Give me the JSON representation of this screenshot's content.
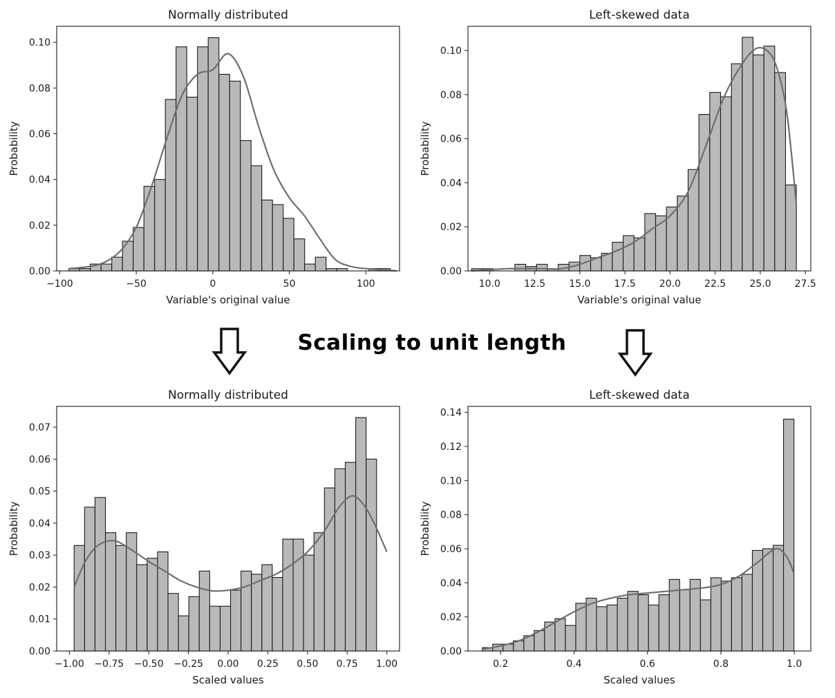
{
  "heading": "Scaling to unit length",
  "chart_data": [
    {
      "type": "bar",
      "title": "Normally distributed",
      "xlabel": "Variable's original value",
      "ylabel": "Probability",
      "xlim": [
        -102,
        122
      ],
      "ylim": [
        0,
        0.107
      ],
      "xticks": [
        -100,
        -50,
        0,
        50,
        100
      ],
      "xtick_labels": [
        "−100",
        "−50",
        "0",
        "50",
        "100"
      ],
      "yticks": [
        0,
        0.02,
        0.04,
        0.06,
        0.08,
        0.1
      ],
      "ytick_labels": [
        "0.00",
        "0.02",
        "0.04",
        "0.06",
        "0.08",
        "0.10"
      ],
      "bin_start": -94,
      "bin_width": 7,
      "values": [
        0.001,
        0.001,
        0.003,
        0.003,
        0.006,
        0.013,
        0.019,
        0.037,
        0.04,
        0.075,
        0.098,
        0.076,
        0.098,
        0.102,
        0.086,
        0.083,
        0.057,
        0.046,
        0.031,
        0.029,
        0.023,
        0.014,
        0.003,
        0.006,
        0.001,
        0.001,
        0.0,
        0.0,
        0.001,
        0.001
      ],
      "kde": [
        [
          -94,
          0.001
        ],
        [
          -80,
          0.002
        ],
        [
          -70,
          0.004
        ],
        [
          -60,
          0.009
        ],
        [
          -50,
          0.019
        ],
        [
          -40,
          0.037
        ],
        [
          -30,
          0.058
        ],
        [
          -20,
          0.077
        ],
        [
          -10,
          0.086
        ],
        [
          0,
          0.088
        ],
        [
          10,
          0.095
        ],
        [
          20,
          0.085
        ],
        [
          30,
          0.063
        ],
        [
          40,
          0.044
        ],
        [
          50,
          0.032
        ],
        [
          60,
          0.024
        ],
        [
          70,
          0.014
        ],
        [
          80,
          0.005
        ],
        [
          90,
          0.002
        ],
        [
          100,
          0.001
        ],
        [
          120,
          0.0
        ]
      ]
    },
    {
      "type": "bar",
      "title": "Left-skewed data",
      "xlabel": "Variable's original value",
      "ylabel": "Probability",
      "xlim": [
        8.8,
        27.8
      ],
      "ylim": [
        0,
        0.111
      ],
      "xticks": [
        10.0,
        12.5,
        15.0,
        17.5,
        20.0,
        22.5,
        25.0,
        27.5
      ],
      "xtick_labels": [
        "10.0",
        "12.5",
        "15.0",
        "17.5",
        "20.0",
        "22.5",
        "25.0",
        "27.5"
      ],
      "yticks": [
        0,
        0.02,
        0.04,
        0.06,
        0.08,
        0.1
      ],
      "ytick_labels": [
        "0.00",
        "0.02",
        "0.04",
        "0.06",
        "0.08",
        "0.10"
      ],
      "bin_start": 9.0,
      "bin_width": 0.6,
      "values": [
        0.001,
        0.001,
        0.0,
        0.0,
        0.003,
        0.002,
        0.003,
        0.001,
        0.003,
        0.004,
        0.007,
        0.006,
        0.008,
        0.013,
        0.016,
        0.015,
        0.026,
        0.025,
        0.029,
        0.034,
        0.046,
        0.071,
        0.081,
        0.079,
        0.094,
        0.106,
        0.098,
        0.102,
        0.09,
        0.039
      ],
      "kde": [
        [
          9.0,
          0.0
        ],
        [
          11.0,
          0.001
        ],
        [
          13.0,
          0.001
        ],
        [
          14.0,
          0.001
        ],
        [
          15.0,
          0.003
        ],
        [
          16.0,
          0.006
        ],
        [
          17.0,
          0.009
        ],
        [
          18.0,
          0.013
        ],
        [
          19.0,
          0.019
        ],
        [
          20.0,
          0.025
        ],
        [
          21.0,
          0.036
        ],
        [
          22.0,
          0.057
        ],
        [
          23.0,
          0.079
        ],
        [
          24.0,
          0.094
        ],
        [
          24.8,
          0.101
        ],
        [
          25.5,
          0.099
        ],
        [
          26.0,
          0.09
        ],
        [
          26.5,
          0.07
        ],
        [
          27.0,
          0.03
        ]
      ]
    },
    {
      "type": "bar",
      "title": "Normally distributed",
      "xlabel": "Scaled values",
      "ylabel": "Probability",
      "xlim": [
        -1.08,
        1.08
      ],
      "ylim": [
        0,
        0.0765
      ],
      "xticks": [
        -1.0,
        -0.75,
        -0.5,
        -0.25,
        0.0,
        0.25,
        0.5,
        0.75,
        1.0
      ],
      "xtick_labels": [
        "−1.00",
        "−0.75",
        "−0.50",
        "−0.25",
        "0.00",
        "0.25",
        "0.50",
        "0.75",
        "1.00"
      ],
      "yticks": [
        0,
        0.01,
        0.02,
        0.03,
        0.04,
        0.05,
        0.06,
        0.07
      ],
      "ytick_labels": [
        "0.00",
        "0.01",
        "0.02",
        "0.03",
        "0.04",
        "0.05",
        "0.06",
        "0.07"
      ],
      "bin_start": -0.97,
      "bin_width": 0.0657,
      "values": [
        0.033,
        0.045,
        0.048,
        0.037,
        0.033,
        0.037,
        0.027,
        0.029,
        0.031,
        0.018,
        0.011,
        0.017,
        0.025,
        0.014,
        0.014,
        0.019,
        0.025,
        0.024,
        0.027,
        0.023,
        0.035,
        0.035,
        0.03,
        0.037,
        0.051,
        0.057,
        0.059,
        0.073,
        0.06
      ],
      "kde": [
        [
          -0.97,
          0.02
        ],
        [
          -0.9,
          0.028
        ],
        [
          -0.82,
          0.033
        ],
        [
          -0.72,
          0.0345
        ],
        [
          -0.62,
          0.032
        ],
        [
          -0.5,
          0.028
        ],
        [
          -0.4,
          0.025
        ],
        [
          -0.3,
          0.022
        ],
        [
          -0.2,
          0.02
        ],
        [
          -0.1,
          0.0188
        ],
        [
          0.0,
          0.019
        ],
        [
          0.1,
          0.02
        ],
        [
          0.2,
          0.022
        ],
        [
          0.3,
          0.024
        ],
        [
          0.4,
          0.027
        ],
        [
          0.5,
          0.031
        ],
        [
          0.6,
          0.037
        ],
        [
          0.7,
          0.045
        ],
        [
          0.78,
          0.0485
        ],
        [
          0.85,
          0.046
        ],
        [
          0.92,
          0.04
        ],
        [
          1.0,
          0.031
        ]
      ]
    },
    {
      "type": "bar",
      "title": "Left-skewed data",
      "xlabel": "Scaled values",
      "ylabel": "Probability",
      "xlim": [
        0.111,
        1.045
      ],
      "ylim": [
        0,
        0.1435
      ],
      "xticks": [
        0.2,
        0.4,
        0.6,
        0.8,
        1.0
      ],
      "xtick_labels": [
        "0.2",
        "0.4",
        "0.6",
        "0.8",
        "1.0"
      ],
      "yticks": [
        0,
        0.02,
        0.04,
        0.06,
        0.08,
        0.1,
        0.12,
        0.14
      ],
      "ytick_labels": [
        "0.00",
        "0.02",
        "0.04",
        "0.06",
        "0.08",
        "0.10",
        "0.12",
        "0.14"
      ],
      "bin_start": 0.15,
      "bin_width": 0.0283,
      "values": [
        0.002,
        0.004,
        0.004,
        0.006,
        0.009,
        0.012,
        0.017,
        0.019,
        0.015,
        0.028,
        0.031,
        0.026,
        0.027,
        0.031,
        0.035,
        0.033,
        0.027,
        0.033,
        0.042,
        0.036,
        0.042,
        0.03,
        0.043,
        0.041,
        0.043,
        0.045,
        0.059,
        0.06,
        0.062,
        0.136
      ],
      "kde": [
        [
          0.15,
          0.001
        ],
        [
          0.2,
          0.003
        ],
        [
          0.25,
          0.006
        ],
        [
          0.3,
          0.011
        ],
        [
          0.35,
          0.017
        ],
        [
          0.4,
          0.023
        ],
        [
          0.45,
          0.028
        ],
        [
          0.5,
          0.031
        ],
        [
          0.55,
          0.033
        ],
        [
          0.6,
          0.034
        ],
        [
          0.65,
          0.035
        ],
        [
          0.7,
          0.036
        ],
        [
          0.75,
          0.037
        ],
        [
          0.8,
          0.039
        ],
        [
          0.85,
          0.044
        ],
        [
          0.9,
          0.052
        ],
        [
          0.95,
          0.06
        ],
        [
          0.98,
          0.055
        ],
        [
          1.0,
          0.045
        ]
      ]
    }
  ]
}
